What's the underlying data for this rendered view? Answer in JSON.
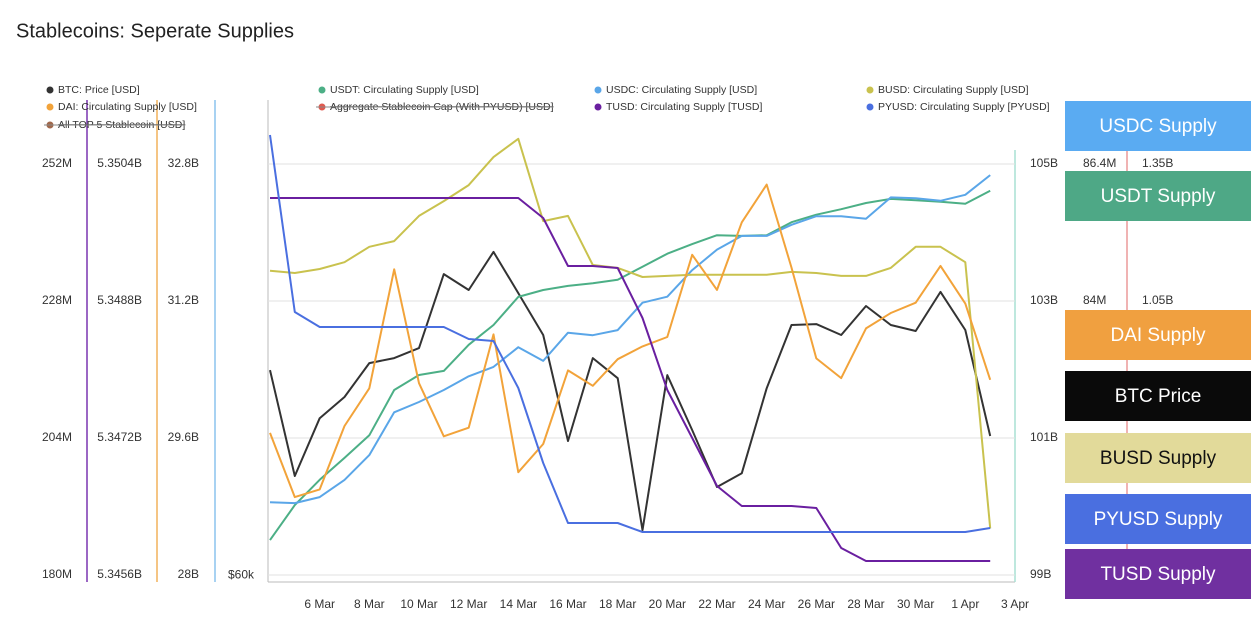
{
  "chart_data": {
    "type": "line",
    "title": "Stablecoins: Seperate Supplies",
    "categories": [
      null,
      null,
      "6 Mar",
      null,
      "8 Mar",
      null,
      "10 Mar",
      null,
      "12 Mar",
      null,
      "14 Mar",
      null,
      "16 Mar",
      null,
      "18 Mar",
      null,
      "20 Mar",
      null,
      "22 Mar",
      null,
      "24 Mar",
      null,
      "26 Mar",
      null,
      "28 Mar",
      null,
      "30 Mar",
      null,
      "1 Apr",
      null,
      "3 Apr"
    ],
    "axes": [
      {
        "ylim": [
          178.77,
          263.21
        ],
        "yticks": [
          {
            "value": 180,
            "label": "180M"
          },
          {
            "value": 204,
            "label": "204M"
          },
          {
            "value": 228,
            "label": "228M"
          },
          {
            "value": 252,
            "label": "252M"
          }
        ],
        "color": "#7a35b0"
      },
      {
        "ylim": [
          5.345518,
          5.351148
        ],
        "yticks": [
          {
            "value": 5.3456,
            "label": "5.3456B"
          },
          {
            "value": 5.3472,
            "label": "5.3472B"
          },
          {
            "value": 5.3488,
            "label": "5.3488B"
          },
          {
            "value": 5.3504,
            "label": "5.3504B"
          }
        ],
        "color": "#f2b25c"
      },
      {
        "ylim": [
          27.918,
          33.547
        ],
        "yticks": [
          {
            "value": 28,
            "label": "28B"
          },
          {
            "value": 29.6,
            "label": "29.6B"
          },
          {
            "value": 31.2,
            "label": "31.2B"
          },
          {
            "value": 32.8,
            "label": "32.8B"
          }
        ],
        "color": "#8cc3ee"
      },
      {
        "ylim": [
          59.71,
          79.95
        ],
        "yticks": [
          {
            "value": 60,
            "label": "$60k"
          }
        ]
      },
      {
        "ylim": [
          98.898,
          105.934
        ],
        "yticks": [
          {
            "value": 99,
            "label": "99B"
          },
          {
            "value": 101,
            "label": "101B"
          },
          {
            "value": 103,
            "label": "103B"
          },
          {
            "value": 105,
            "label": "105B"
          }
        ],
        "color": "#a9e0d3"
      },
      {
        "ylim": [
          79.08,
          87.52
        ],
        "yticks": [
          {
            "value": 84,
            "label": "84M"
          },
          {
            "value": 86.4,
            "label": "86.4M"
          }
        ]
      },
      {
        "ylim": [
          0.4347,
          1.4902
        ],
        "yticks": [
          {
            "value": 1.05,
            "label": "1.05B"
          },
          {
            "value": 1.35,
            "label": "1.35B"
          }
        ],
        "color": "#ec9a9a"
      }
    ],
    "grid": true,
    "series": [
      {
        "name": "BTC: Price [USD]",
        "color": "#333333",
        "axis": 3,
        "values": [
          68.61,
          64.16,
          66.59,
          67.48,
          68.9,
          69.11,
          69.53,
          72.64,
          71.97,
          73.57,
          71.84,
          70.08,
          65.63,
          69.11,
          68.27,
          61.89,
          68.4,
          66.09,
          63.7,
          64.28,
          67.85,
          70.5,
          70.54,
          70.08,
          71.3,
          70.5,
          70.25,
          71.89,
          70.29,
          65.84,
          null
        ]
      },
      {
        "name": "USDT: Circulating Supply [USD]",
        "color": "#4caf86",
        "axis": 4,
        "values": [
          99.51,
          100.02,
          100.39,
          100.71,
          101.04,
          101.7,
          101.92,
          101.98,
          102.36,
          102.65,
          103.06,
          103.16,
          103.22,
          103.26,
          103.31,
          103.5,
          103.69,
          103.83,
          103.96,
          103.95,
          103.96,
          104.15,
          104.26,
          104.34,
          104.43,
          104.49,
          104.47,
          104.45,
          104.42,
          104.61,
          null
        ]
      },
      {
        "name": "USDC: Circulating Supply [USD]",
        "color": "#5aa6e8",
        "axis": 2,
        "values": [
          28.85,
          28.84,
          28.91,
          29.11,
          29.4,
          29.9,
          30.02,
          30.16,
          30.32,
          30.43,
          30.66,
          30.5,
          30.83,
          30.8,
          30.86,
          31.18,
          31.25,
          31.56,
          31.8,
          31.96,
          31.96,
          32.09,
          32.19,
          32.19,
          32.16,
          32.41,
          32.4,
          32.37,
          32.44,
          32.67,
          null
        ]
      },
      {
        "name": "BUSD: Circulating Supply [USD]",
        "color": "#c9c24e",
        "axis": 5,
        "values": [
          84.53,
          84.49,
          84.56,
          84.68,
          84.95,
          85.05,
          85.49,
          85.75,
          86.03,
          86.52,
          86.84,
          85.4,
          85.49,
          84.63,
          84.58,
          84.42,
          84.44,
          84.46,
          84.46,
          84.46,
          84.46,
          84.51,
          84.49,
          84.44,
          84.44,
          84.58,
          84.95,
          84.95,
          84.68,
          80.02,
          null
        ]
      },
      {
        "name": "DAI: Circulating Supply [USD]",
        "color": "#f2a33a",
        "axis": 1,
        "values": [
          5.34726,
          5.34651,
          5.3466,
          5.34734,
          5.34778,
          5.34917,
          5.34784,
          5.34722,
          5.34732,
          5.34841,
          5.3468,
          5.34713,
          5.34799,
          5.34781,
          5.34812,
          5.34827,
          5.34838,
          5.34934,
          5.34893,
          5.34972,
          5.35016,
          5.34919,
          5.34813,
          5.3479,
          5.34848,
          5.34866,
          5.34878,
          5.34921,
          5.34877,
          5.34788,
          null
        ]
      },
      {
        "name": "Aggregate Stablecoin Cap (With PYUSD) [USD]",
        "color": "#e05a4f",
        "hidden": true
      },
      {
        "name": "TUSD: Circulating Supply [TUSD]",
        "color": "#6a1fa0",
        "axis": 0,
        "values": [
          246.04,
          246.04,
          246.04,
          246.04,
          246.04,
          246.04,
          246.04,
          246.04,
          246.04,
          246.04,
          246.04,
          242.54,
          234.13,
          234.13,
          233.78,
          225.02,
          212.41,
          204.0,
          195.59,
          192.09,
          192.09,
          192.09,
          191.74,
          184.73,
          182.45,
          182.45,
          182.45,
          182.45,
          182.45,
          182.45,
          null
        ]
      },
      {
        "name": "PYUSD: Circulating Supply [PYUSD]",
        "color": "#4a6fe0",
        "axis": 6,
        "values": [
          1.4135,
          1.0259,
          0.9931,
          0.9931,
          0.9931,
          0.9931,
          0.9931,
          0.9931,
          0.9668,
          0.9624,
          0.8595,
          0.6953,
          0.5639,
          0.5639,
          0.5639,
          0.5442,
          0.5442,
          0.5442,
          0.5442,
          0.5442,
          0.5442,
          0.5442,
          0.5442,
          0.5442,
          0.5442,
          0.5442,
          0.5442,
          0.5442,
          0.5442,
          0.5529,
          null
        ]
      },
      {
        "name": "All TOP 5 Stablecoin [USD]",
        "color": "#a0674a",
        "hidden": true
      }
    ],
    "annotations": [
      {
        "text": "USDC Supply",
        "color": "#5aabf2",
        "text_color": "#ffffff"
      },
      {
        "text": "USDT Supply",
        "color": "#4ea886",
        "text_color": "#ffffff"
      },
      {
        "text": "DAI Supply",
        "color": "#f0a040",
        "text_color": "#ffffff"
      },
      {
        "text": "BTC Price",
        "color": "#0a0a0a",
        "text_color": "#ffffff"
      },
      {
        "text": "BUSD Supply",
        "color": "#e2da9a",
        "text_color": "#111111"
      },
      {
        "text": "PYUSD Supply",
        "color": "#4a6fe0",
        "text_color": "#ffffff"
      },
      {
        "text": "TUSD Supply",
        "color": "#7030a0",
        "text_color": "#ffffff"
      }
    ]
  }
}
